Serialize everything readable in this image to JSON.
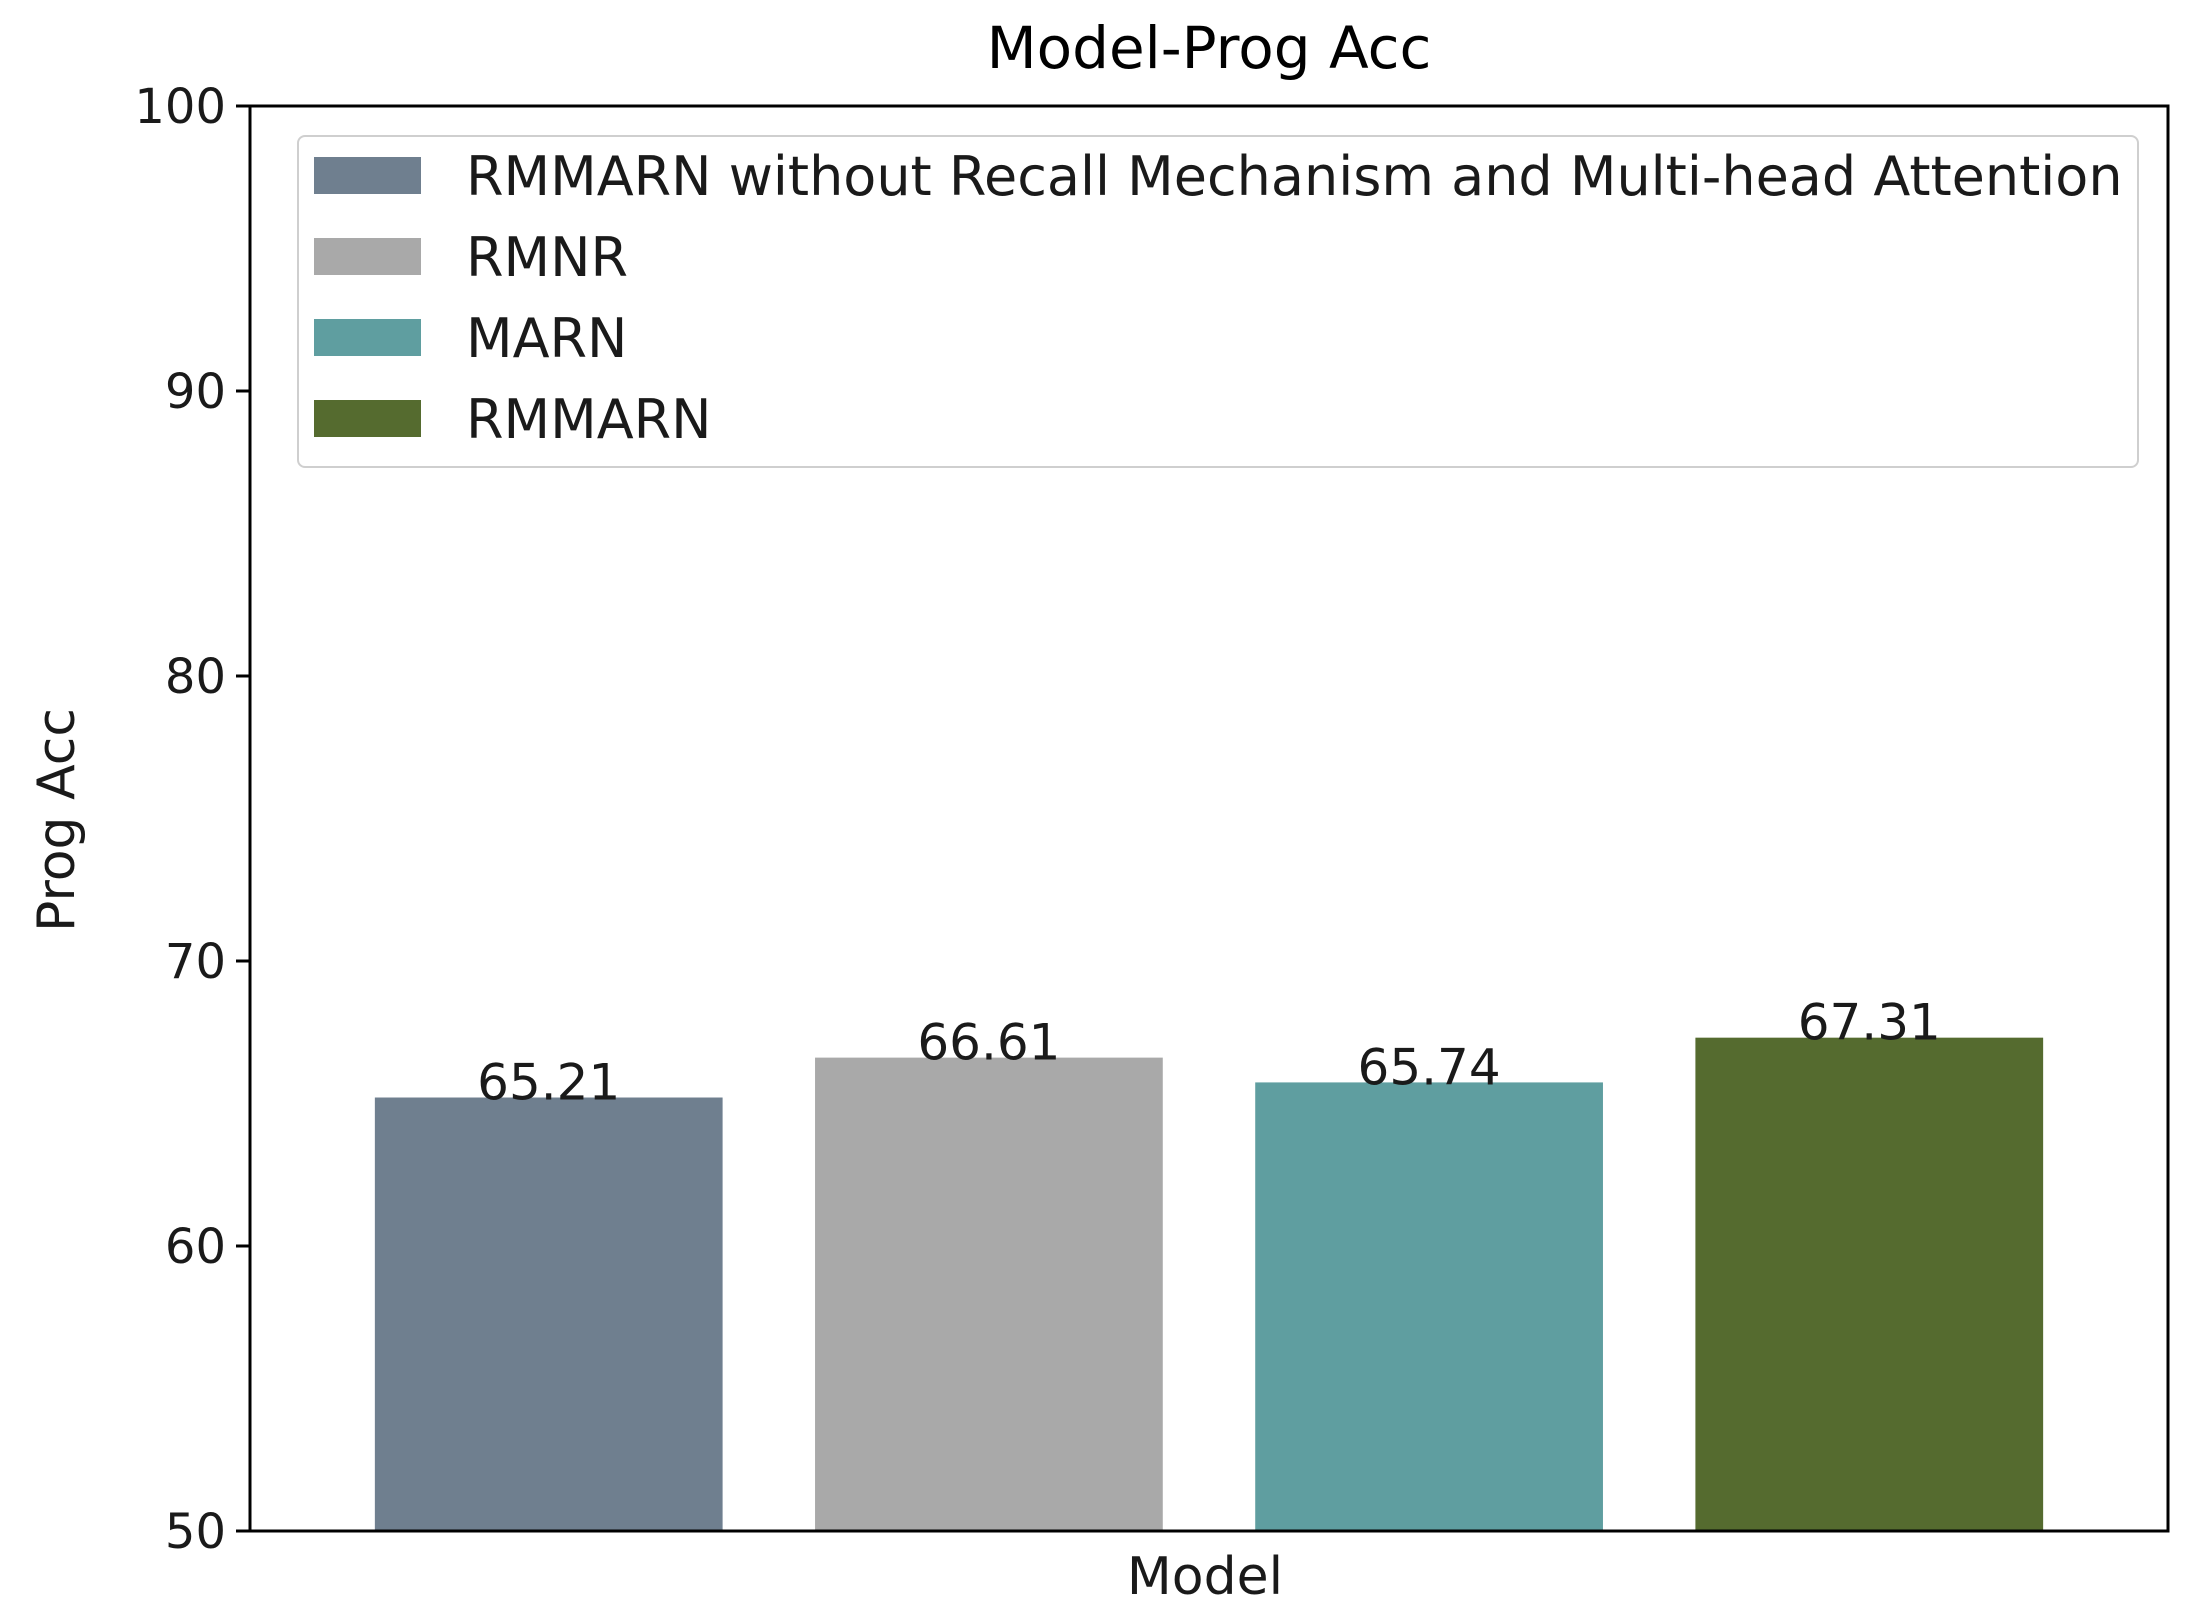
{
  "chart_data": {
    "type": "bar",
    "title": "Model-Prog Acc",
    "xlabel": "Model",
    "ylabel": "Prog Acc",
    "ylim": [
      50,
      100
    ],
    "yticks": [
      50,
      60,
      70,
      80,
      90,
      100
    ],
    "grid": false,
    "legend_position": "top",
    "series": [
      {
        "name": "RMMARN without Recall Mechanism and Multi-head Attention",
        "value": 65.21,
        "label": "65.21",
        "color": "#6f7f8f"
      },
      {
        "name": "RMNR",
        "value": 66.61,
        "label": "66.61",
        "color": "#a9a9a9"
      },
      {
        "name": "MARN",
        "value": 65.74,
        "label": "65.74",
        "color": "#5f9ea0"
      },
      {
        "name": "RMMARN",
        "value": 67.31,
        "label": "67.31",
        "color": "#556b2f"
      }
    ]
  }
}
